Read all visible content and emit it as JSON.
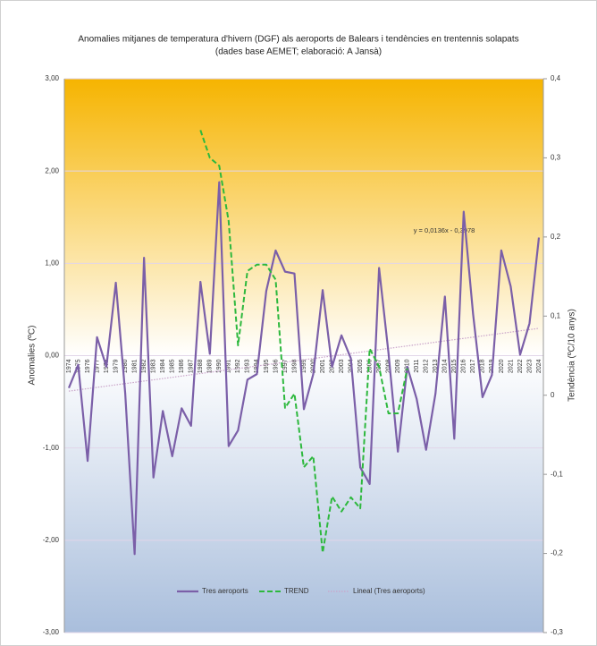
{
  "chart_data": {
    "type": "line",
    "title": "Anomalies mitjanes de temperatura d'hivern (DGF) als aeroports de Balears i tendències en trentennis solapats",
    "subtitle": "(dades base AEMET; elaboració: A Jansà)",
    "y_label": "Anomalies (ºC)",
    "y2_label": "Tendència (ºC/10 anys)",
    "categories": [
      "1974",
      "1975",
      "1976",
      "1977",
      "1978",
      "1979",
      "1980",
      "1981",
      "1982",
      "1983",
      "1984",
      "1985",
      "1986",
      "1987",
      "1988",
      "1989",
      "1990",
      "1991",
      "1992",
      "1993",
      "1994",
      "1995",
      "1996",
      "1997",
      "1998",
      "1999",
      "2000",
      "2001",
      "2002",
      "2003",
      "2004",
      "2005",
      "2006",
      "2007",
      "2008",
      "2009",
      "2010",
      "2011",
      "2012",
      "2013",
      "2014",
      "2015",
      "2016",
      "2017",
      "2018",
      "2019",
      "2020",
      "2021",
      "2022",
      "2023",
      "2024"
    ],
    "series": [
      {
        "name": "Tres aeroports",
        "color": "#7b5fa8",
        "dashed": false,
        "values": [
          -0.35,
          -0.1,
          -1.14,
          0.2,
          -0.12,
          0.79,
          -0.41,
          -2.15,
          1.06,
          -1.32,
          -0.6,
          -1.09,
          -0.57,
          -0.76,
          0.8,
          0.02,
          1.88,
          -0.98,
          -0.81,
          -0.26,
          -0.2,
          0.7,
          1.14,
          0.91,
          0.89,
          -0.58,
          -0.2,
          0.71,
          -0.12,
          0.22,
          -0.03,
          -1.21,
          -1.39,
          0.95,
          0.03,
          -1.04,
          -0.12,
          -0.47,
          -1.02,
          -0.41,
          0.64,
          -0.9,
          1.56,
          0.45,
          -0.45,
          -0.21,
          1.14,
          0.75,
          0.01,
          0.35,
          1.28
        ]
      },
      {
        "name": "TREND",
        "color": "#2db83d",
        "dashed": true,
        "axis": "y2",
        "values": [
          null,
          null,
          null,
          null,
          null,
          null,
          null,
          null,
          null,
          null,
          null,
          null,
          null,
          null,
          0.335,
          0.3,
          0.29,
          0.22,
          0.063,
          0.157,
          0.165,
          0.165,
          0.146,
          -0.016,
          0.002,
          -0.091,
          -0.077,
          -0.199,
          -0.128,
          -0.147,
          -0.129,
          -0.143,
          0.059,
          0.036,
          -0.023,
          -0.023,
          0.034,
          null,
          null,
          null,
          null,
          null,
          null,
          null,
          null,
          null,
          null,
          null,
          null,
          null,
          null
        ]
      }
    ],
    "trendline": {
      "name": "Lineal  (Tres aeroports)",
      "color": "#c9a3c9",
      "slope": 0.0136,
      "intercept": -0.3978,
      "equation": "y = 0,0136x - 0,3978"
    },
    "ylim": [
      -3,
      3
    ],
    "yticks": [
      {
        "value": -3,
        "label": "-3,00"
      },
      {
        "value": -2,
        "label": "-2,00"
      },
      {
        "value": -1,
        "label": "-1,00"
      },
      {
        "value": 0,
        "label": "0,00"
      },
      {
        "value": 1,
        "label": "1,00"
      },
      {
        "value": 2,
        "label": "2,00"
      },
      {
        "value": 3,
        "label": "3,00"
      }
    ],
    "y2lim": [
      -0.3,
      0.4
    ],
    "y2ticks": [
      {
        "value": -0.3,
        "label": "-0,3"
      },
      {
        "value": -0.2,
        "label": "-0,2"
      },
      {
        "value": -0.1,
        "label": "-0,1"
      },
      0,
      {
        "value": 0.1,
        "label": "0,1"
      },
      {
        "value": 0.2,
        "label": "0,2"
      },
      {
        "value": 0.3,
        "label": "0,3"
      },
      {
        "value": 0.4,
        "label": "0,4"
      }
    ],
    "grid": true,
    "legend": "bottom"
  }
}
